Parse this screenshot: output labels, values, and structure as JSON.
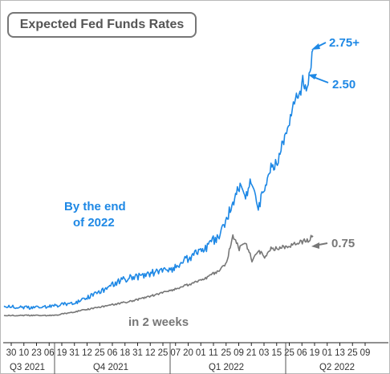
{
  "chart_data": {
    "type": "line",
    "title": "Expected Fed Funds Rates",
    "x_tick_labels": [
      "30",
      "10",
      "23",
      "06",
      "19",
      "31",
      "12",
      "25",
      "06",
      "18",
      "31",
      "12",
      "25",
      "07",
      "20",
      "01",
      "11",
      "25",
      "09",
      "21",
      "03",
      "15",
      "25",
      "06",
      "19",
      "01",
      "13",
      "25",
      "09"
    ],
    "quarter_labels": [
      "Q3 2021",
      "Q4 2021",
      "Q1 2022",
      "Q2 2022"
    ],
    "grid": false,
    "legend": "none",
    "series": [
      {
        "color": "#1e88e5",
        "x": [
          0,
          2,
          4,
          6,
          7,
          8,
          9,
          10,
          11,
          12,
          13,
          14,
          15,
          16,
          17,
          17.5,
          18,
          18.5,
          19,
          19.5,
          20,
          20.5,
          21,
          21.5,
          22,
          22.3,
          22.6,
          23,
          23.2,
          23.5,
          23.7,
          24,
          24.3
        ],
        "values": [
          0.1,
          0.08,
          0.1,
          0.15,
          0.22,
          0.28,
          0.36,
          0.4,
          0.42,
          0.46,
          0.48,
          0.55,
          0.66,
          0.72,
          0.85,
          1.0,
          1.2,
          1.35,
          1.28,
          1.42,
          1.12,
          1.36,
          1.55,
          1.62,
          1.85,
          2.0,
          2.12,
          2.35,
          2.28,
          2.48,
          2.4,
          2.5,
          2.8
        ]
      },
      {
        "color": "#777777",
        "x": [
          0,
          2,
          4,
          6,
          8,
          10,
          12,
          14,
          16,
          17,
          17.5,
          18,
          18.5,
          19,
          19.5,
          20,
          20.5,
          21,
          22,
          23,
          24,
          24.3
        ],
        "values": [
          0.0,
          0.0,
          0.0,
          0.05,
          0.1,
          0.15,
          0.22,
          0.3,
          0.4,
          0.48,
          0.55,
          0.85,
          0.7,
          0.78,
          0.58,
          0.68,
          0.62,
          0.7,
          0.72,
          0.76,
          0.8,
          0.84
        ]
      }
    ],
    "annotations": {
      "blue_top": "2.75+",
      "blue_mid": "2.50",
      "gray_end": "0.75",
      "blue_text_1": "By the end",
      "blue_text_2": "of 2022",
      "gray_text": "in 2 weeks"
    }
  }
}
